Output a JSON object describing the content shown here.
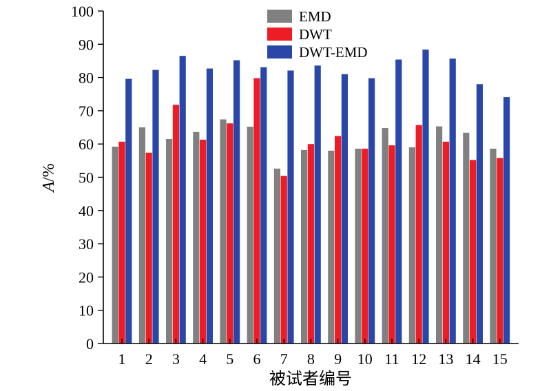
{
  "chart_data": {
    "type": "bar",
    "categories": [
      "1",
      "2",
      "3",
      "4",
      "5",
      "6",
      "7",
      "8",
      "9",
      "10",
      "11",
      "12",
      "13",
      "14",
      "15"
    ],
    "series": [
      {
        "name": "EMD",
        "color": "#808080",
        "values": [
          59.2,
          65.0,
          61.5,
          63.6,
          67.4,
          65.2,
          52.6,
          58.2,
          58.0,
          58.6,
          64.8,
          59.0,
          65.3,
          63.4,
          58.6
        ]
      },
      {
        "name": "DWT",
        "color": "#ee1c25",
        "values": [
          60.7,
          57.4,
          71.8,
          61.3,
          66.2,
          79.8,
          50.4,
          60.0,
          62.4,
          58.6,
          59.6,
          65.7,
          60.7,
          55.2,
          55.8
        ]
      },
      {
        "name": "DWT-EMD",
        "color": "#2947a8",
        "values": [
          79.6,
          82.3,
          86.5,
          82.7,
          85.2,
          83.1,
          82.1,
          83.6,
          81.0,
          79.8,
          85.4,
          88.4,
          85.7,
          78.0,
          74.1
        ]
      }
    ],
    "ylim": [
      0,
      100
    ],
    "yticks": [
      "0",
      "10",
      "20",
      "30",
      "40",
      "50",
      "60",
      "70",
      "80",
      "90",
      "100"
    ],
    "ylabel_italic": "A",
    "ylabel_unit": "/%",
    "xlabel": "被试者编号",
    "legend_position": "top-center",
    "grid": false
  }
}
